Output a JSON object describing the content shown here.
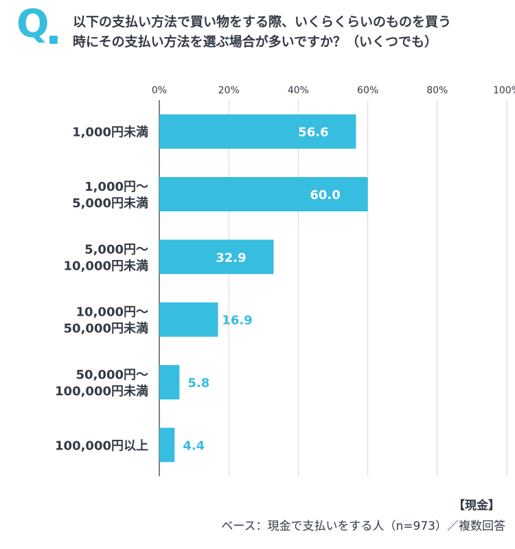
{
  "header": {
    "q_letter": "Q",
    "question_line1": "以下の支払い方法で買い物をする際、いくらくらいのものを買う",
    "question_line2": "時にその支払い方法を選ぶ場合が多いですか？（いくつでも）"
  },
  "footer": {
    "tag": "【現金】",
    "base": "ベース：現金で支払いをする人（n=973）／複数回答"
  },
  "colors": {
    "accent": "#36bde0",
    "text": "#333a45",
    "grid": "#d6d6d6",
    "value_inside": "#ffffff"
  },
  "chart_data": {
    "type": "bar",
    "orientation": "horizontal",
    "title": "",
    "xlabel": "",
    "ylabel": "",
    "xlim": [
      0,
      100
    ],
    "ticks": [
      {
        "value": 0,
        "label": "0%"
      },
      {
        "value": 20,
        "label": "20%"
      },
      {
        "value": 40,
        "label": "40%"
      },
      {
        "value": 60,
        "label": "60%"
      },
      {
        "value": 80,
        "label": "80%"
      },
      {
        "value": 100,
        "label": "100%"
      }
    ],
    "grid": true,
    "legend": "none",
    "categories": [
      [
        "1,000円未満"
      ],
      [
        "1,000円～",
        "5,000円未満"
      ],
      [
        "5,000円～",
        "10,000円未満"
      ],
      [
        "10,000円～",
        "50,000円未満"
      ],
      [
        "50,000円～",
        "100,000円未満"
      ],
      [
        "100,000円以上"
      ]
    ],
    "values": [
      56.6,
      60.0,
      32.9,
      16.9,
      5.8,
      4.4
    ],
    "value_labels": [
      "56.6",
      "60.0",
      "32.9",
      "16.9",
      "5.8",
      "4.4"
    ]
  }
}
